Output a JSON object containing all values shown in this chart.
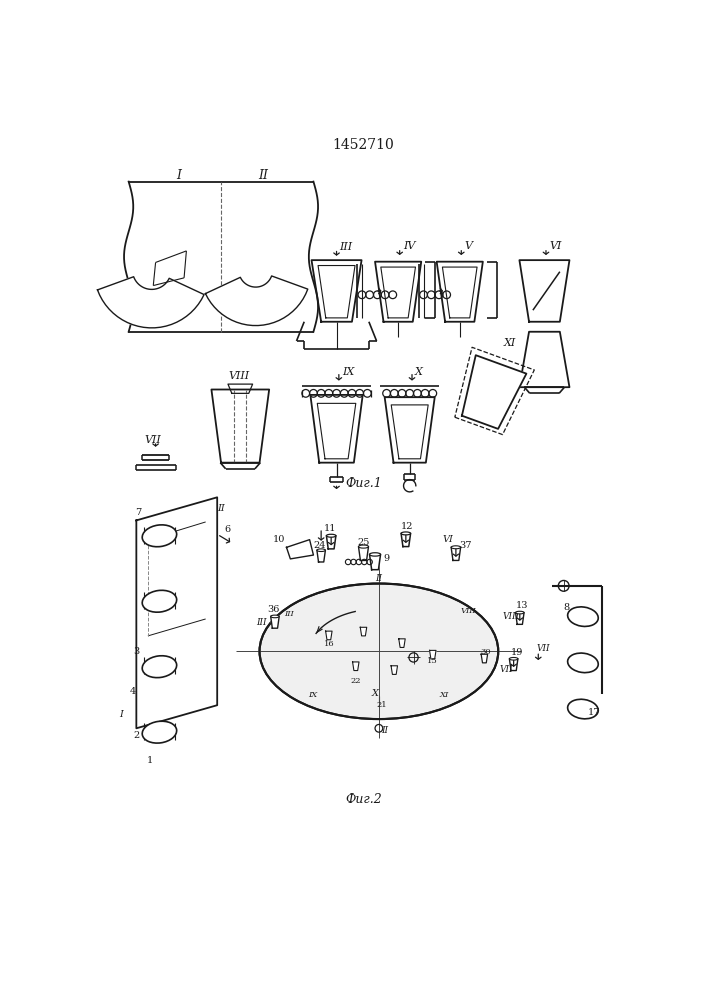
{
  "title": "1452710",
  "fig1_caption": "Фиг.1",
  "fig2_caption": "Фиг.2",
  "bg_color": "#ffffff",
  "line_color": "#1a1a1a"
}
